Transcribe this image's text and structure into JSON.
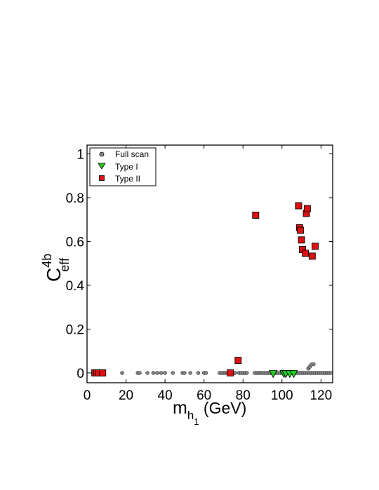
{
  "chart_data": {
    "type": "scatter",
    "xlabel": {
      "main": "m",
      "sub1": "h",
      "sub2": "1",
      "unit": " (GeV)"
    },
    "ylabel": {
      "main": "C",
      "sup": "4b",
      "sub": "eff"
    },
    "xlim": [
      0,
      126
    ],
    "ylim": [
      -0.045,
      1.04
    ],
    "xticks": [
      0,
      20,
      40,
      60,
      80,
      100,
      120
    ],
    "yticks": [
      0,
      0.2,
      0.4,
      0.6,
      0.8,
      1
    ],
    "ytick_labels": [
      "0",
      "0.2",
      "0.4",
      "0.6",
      "0.8",
      "1"
    ],
    "grid": false,
    "legend_position": "top-left",
    "series": [
      {
        "name": "Full scan",
        "marker": "circle",
        "color": "#888888",
        "x": [
          3,
          4,
          5,
          6,
          7,
          8,
          18,
          26,
          27,
          31,
          34,
          36,
          38,
          40,
          44,
          49,
          50,
          53,
          57,
          60,
          61,
          68,
          69,
          70,
          71,
          72,
          73,
          74,
          75,
          76,
          78,
          79,
          80,
          81,
          82,
          86,
          87,
          88,
          89,
          90,
          91,
          92,
          93,
          94,
          95,
          96,
          97,
          98,
          99,
          100,
          101,
          102,
          103,
          104,
          105,
          106,
          107,
          108,
          109,
          110,
          111,
          112,
          113,
          114,
          115,
          116,
          117,
          118,
          119,
          120,
          121,
          122,
          123,
          124,
          125,
          113.5,
          114.2,
          115,
          116.2
        ],
        "y": [
          0,
          0,
          0,
          0,
          0,
          0,
          0,
          0,
          0,
          0,
          0,
          0,
          0,
          0,
          0,
          0,
          0,
          0,
          0,
          0,
          0,
          0,
          0,
          0,
          0,
          0,
          0,
          0,
          0,
          0,
          0,
          0,
          0,
          0,
          0,
          0,
          0,
          0,
          0,
          0,
          0,
          0,
          0,
          0,
          0,
          0,
          0,
          0,
          0,
          0,
          0,
          0,
          0,
          0,
          0,
          0,
          0,
          0,
          0,
          0,
          0,
          0,
          0,
          0,
          0,
          0,
          0,
          0,
          0,
          0,
          0,
          0,
          0,
          0,
          0,
          0.02,
          0.028,
          0.038,
          0.04
        ]
      },
      {
        "name": "Type I",
        "marker": "triangle-down",
        "color": "#22cc22",
        "x": [
          95.5,
          101,
          102,
          104,
          106
        ],
        "y": [
          -0.005,
          -0.005,
          -0.005,
          -0.005,
          -0.005
        ]
      },
      {
        "name": "Type II",
        "marker": "square",
        "color": "#dd1111",
        "x": [
          4,
          5,
          6,
          8,
          73.5,
          77.5,
          86.5,
          108.5,
          109,
          109.5,
          110,
          110.5,
          112,
          112.5,
          113,
          115.5,
          117
        ],
        "y": [
          0,
          0,
          0,
          0,
          0,
          0.057,
          0.72,
          0.763,
          0.663,
          0.651,
          0.607,
          0.563,
          0.546,
          0.728,
          0.75,
          0.533,
          0.578
        ]
      }
    ]
  }
}
